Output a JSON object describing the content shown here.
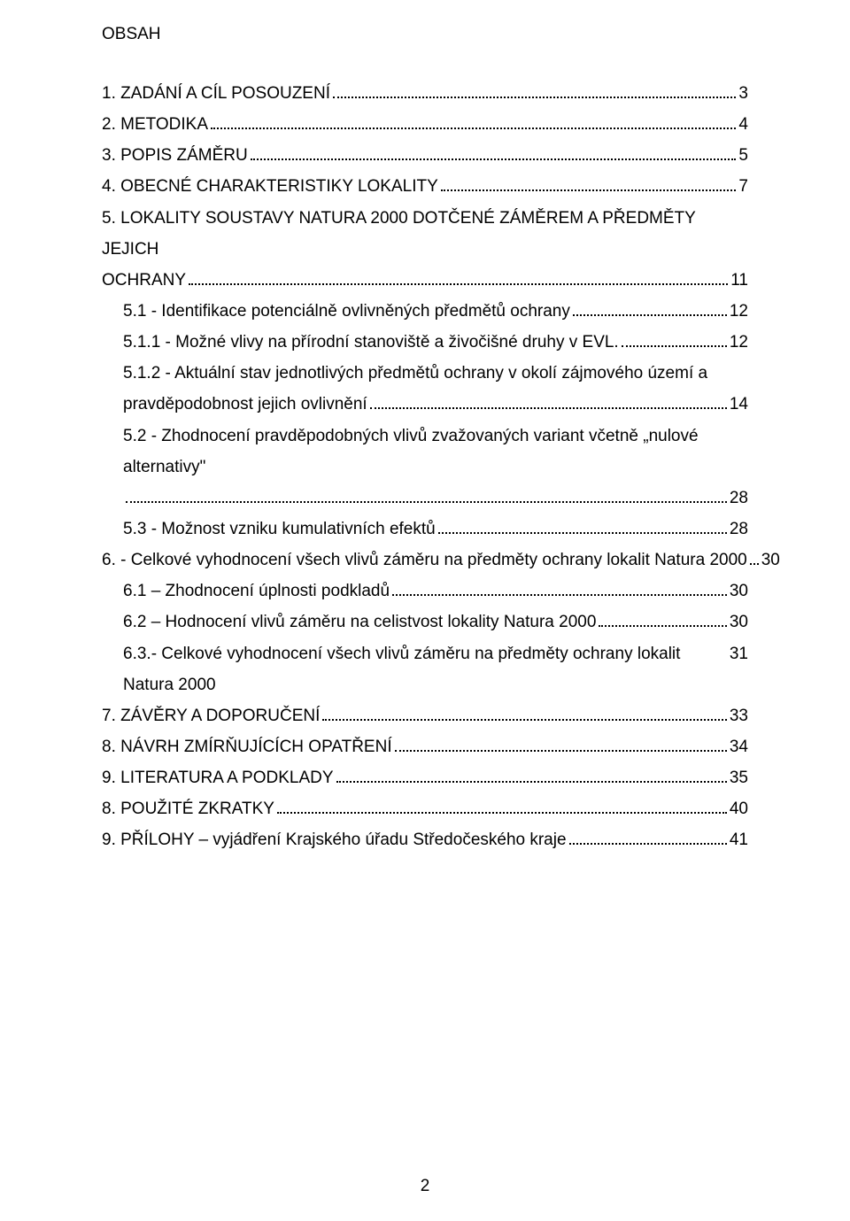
{
  "heading": "OBSAH",
  "footer_page": "2",
  "toc": [
    {
      "label": "1. ZADÁNÍ A CÍL POSOUZENÍ",
      "page": "3",
      "indent": 0
    },
    {
      "label": "2. METODIKA",
      "page": "4",
      "indent": 0
    },
    {
      "label": "3. POPIS ZÁMĚRU",
      "page": "5",
      "indent": 0
    },
    {
      "label": "4. OBECNÉ CHARAKTERISTIKY LOKALITY",
      "page": "7",
      "indent": 0
    },
    {
      "label_line1": "5. LOKALITY SOUSTAVY NATURA 2000 DOTČENÉ ZÁMĚREM A PŘEDMĚTY JEJICH",
      "label_line2": "OCHRANY",
      "page": "11",
      "indent": 0,
      "multiline": true
    },
    {
      "label": "5.1 - Identifikace potenciálně ovlivněných předmětů ochrany",
      "page": "12",
      "indent": 1
    },
    {
      "label": "5.1.1 - Možné vlivy na přírodní stanoviště a živočišné druhy v EVL.",
      "page": "12",
      "indent": 1
    },
    {
      "label_line1": "5.1.2  -  Aktuální  stav  jednotlivých  předmětů  ochrany  v okolí  zájmového  území  a",
      "label_line2": "pravděpodobnost jejich ovlivnění",
      "page": "14",
      "indent": 1,
      "multiline": true,
      "justify": true
    },
    {
      "label": "5.2 - Zhodnocení pravděpodobných vlivů zvažovaných variant včetně „nulové alternativy\"",
      "page": "28",
      "indent": 1,
      "label_full_width": true
    },
    {
      "label": "5.3 - Možnost vzniku kumulativních efektů",
      "page": "28",
      "indent": 1
    },
    {
      "label": "6. - Celkové vyhodnocení všech vlivů záměru na předměty ochrany lokalit Natura 2000",
      "page": "30",
      "indent": 0
    },
    {
      "label": "6.1 – Zhodnocení úplnosti podkladů",
      "page": "30",
      "indent": 1
    },
    {
      "label": "6.2 – Hodnocení vlivů záměru na celistvost lokality Natura 2000",
      "page": "30",
      "indent": 1
    },
    {
      "label": "6.3.- Celkové vyhodnocení všech vlivů záměru na předměty ochrany lokalit Natura 2000",
      "page": "31",
      "indent": 1,
      "no_dots": true
    },
    {
      "label": "7. ZÁVĚRY A DOPORUČENÍ",
      "page": "33",
      "indent": 0
    },
    {
      "label": "8. NÁVRH ZMÍRŇUJÍCÍCH OPATŘENÍ",
      "page": "34",
      "indent": 0
    },
    {
      "label": "9. LITERATURA A PODKLADY",
      "page": "35",
      "indent": 0
    },
    {
      "label": "8. POUŽITÉ ZKRATKY",
      "page": "40",
      "indent": 0
    },
    {
      "label": "9. PŘÍLOHY      – vyjádření Krajského úřadu Středočeského kraje",
      "page": "41",
      "indent": 0
    }
  ]
}
